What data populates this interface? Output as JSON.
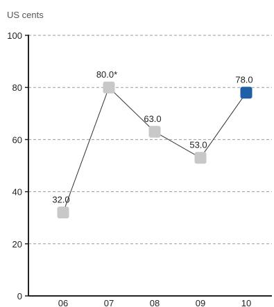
{
  "chart_data": {
    "type": "line",
    "unit_label": "US cents",
    "title": "",
    "xlabel": "",
    "ylabel": "",
    "categories": [
      "06",
      "07",
      "08",
      "09",
      "10"
    ],
    "series": [
      {
        "values": [
          32.0,
          80.0,
          63.0,
          53.0,
          78.0
        ],
        "labels": [
          "32.0",
          "80.0*",
          "63.0",
          "53.0",
          "78.0"
        ],
        "highlight_index": 4
      }
    ],
    "ylim": [
      0,
      100
    ],
    "yticks": [
      0,
      20,
      40,
      60,
      80,
      100
    ],
    "grid": true,
    "colors": {
      "marker": "#c8c8c8",
      "highlight": "#1f5fa8",
      "line": "#333333",
      "grid": "#999999",
      "axis": "#222222",
      "text": "#222222",
      "unit_text": "#555555"
    }
  }
}
